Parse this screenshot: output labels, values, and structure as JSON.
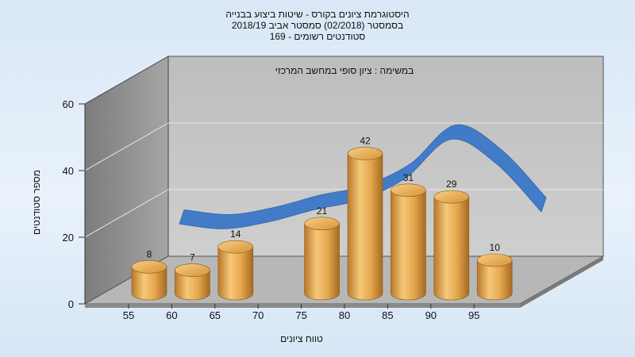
{
  "chart_data": {
    "type": "bar",
    "title_lines": [
      "היסטוגרמת ציונים בקורס - שיטות ביצוע בבנייה",
      "בסמסטר  (02/2018)  סמסטר אביב 2018/19",
      "סטודנטים רשומים - 169"
    ],
    "annotation": "במשימה : ציון סופי במחשב המרכזי",
    "xlabel": "טווח ציונים",
    "ylabel": "מספר סטודנטים",
    "ylim": [
      0,
      60
    ],
    "yticks": [
      "0",
      "20",
      "40",
      "60"
    ],
    "x_tick_labels": [
      "55",
      "60",
      "65",
      "70",
      "75",
      "80",
      "85",
      "90",
      "95"
    ],
    "categories": [
      "55",
      "60",
      "65",
      "70",
      "75",
      "80",
      "85",
      "90",
      "95"
    ],
    "values": [
      8,
      7,
      14,
      null,
      21,
      42,
      31,
      29,
      10
    ],
    "data_labels": [
      "8",
      "7",
      "14",
      "",
      "21",
      "42",
      "31",
      "29",
      "10"
    ],
    "curve": {
      "type": "ribbon",
      "x": [
        55,
        60,
        65,
        70,
        75,
        80,
        85,
        90,
        95
      ],
      "y": [
        13,
        11,
        14,
        19,
        23,
        32,
        48,
        38,
        18
      ]
    },
    "colors": {
      "bar": "#e0a24a",
      "ribbon": "#3b78c9",
      "wall": "#9a9a9a",
      "floor": "#b6b6b6"
    },
    "grid": true,
    "legend": "none"
  }
}
